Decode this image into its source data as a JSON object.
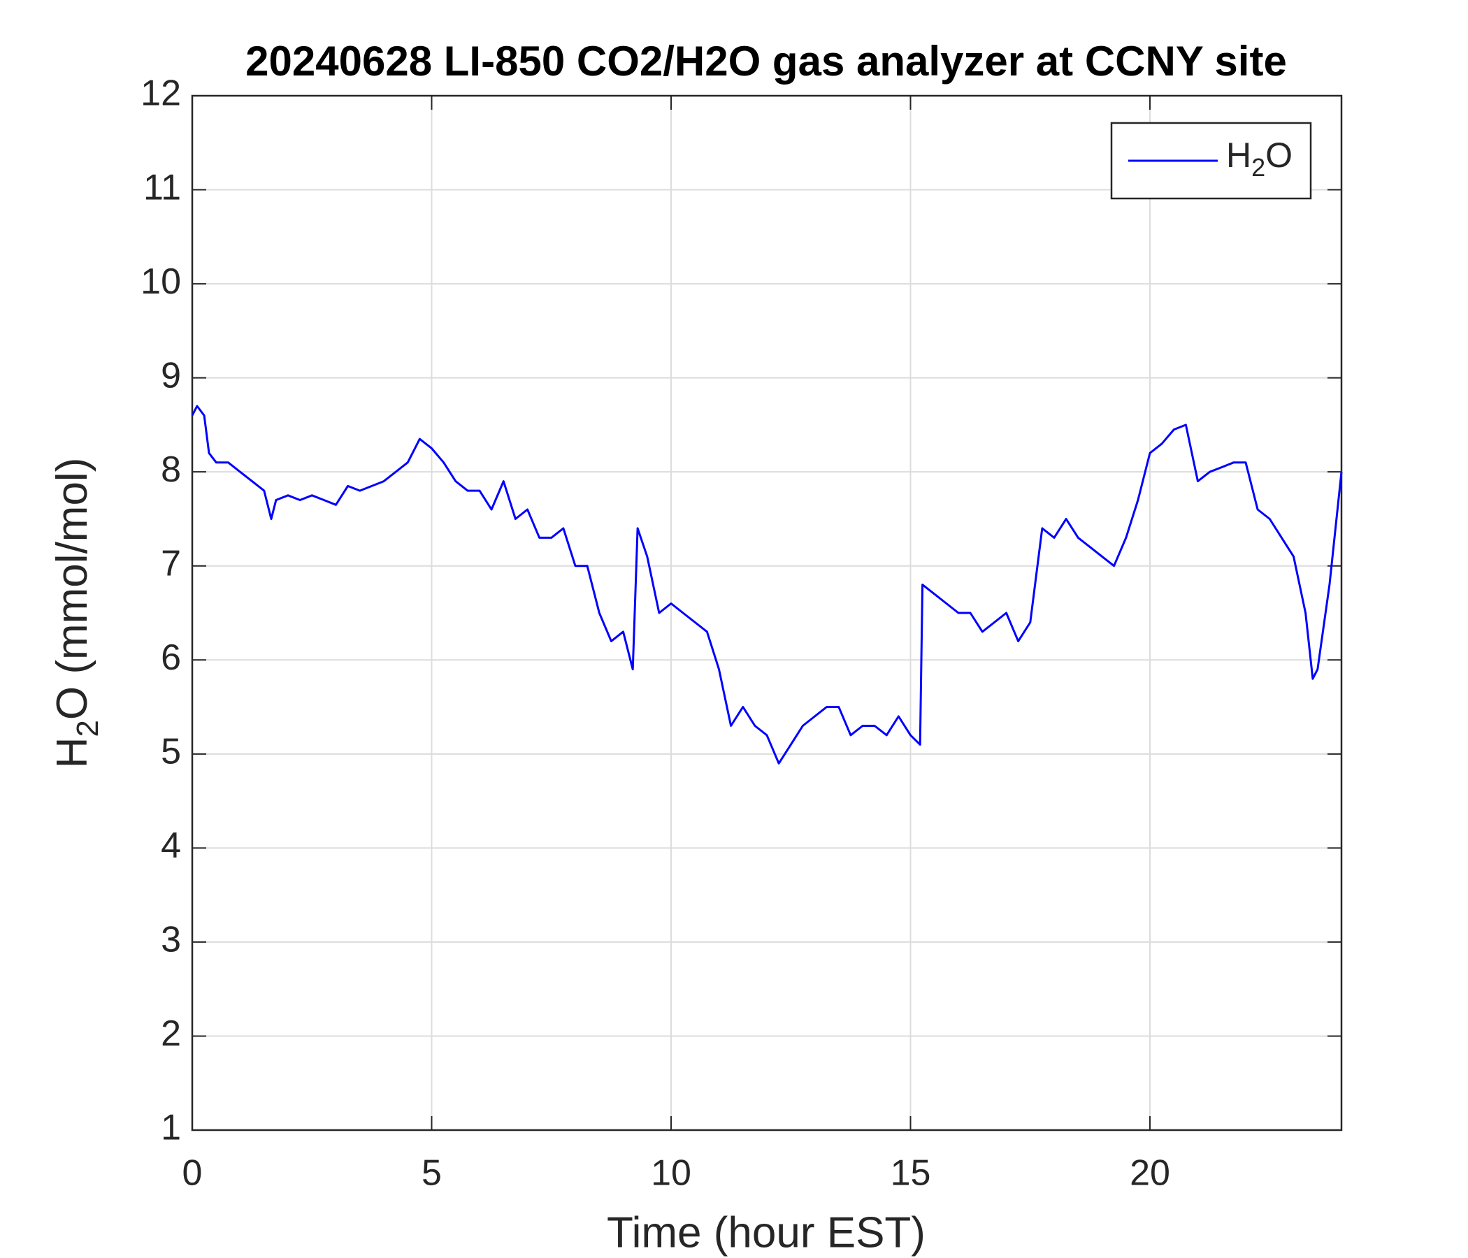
{
  "chart_data": {
    "type": "line",
    "title": "20240628 LI-850 CO2/H2O gas analyzer at CCNY site",
    "x_label": "Time (hour EST)",
    "y_label": "H2O (mmol/mol)",
    "x": [
      0,
      0.1,
      0.25,
      0.35,
      0.5,
      0.75,
      1.0,
      1.25,
      1.5,
      1.65,
      1.75,
      2.0,
      2.25,
      2.5,
      2.75,
      3.0,
      3.25,
      3.5,
      3.75,
      4.0,
      4.25,
      4.5,
      4.75,
      5.0,
      5.25,
      5.5,
      5.75,
      6.0,
      6.25,
      6.5,
      6.75,
      7.0,
      7.25,
      7.5,
      7.75,
      8.0,
      8.25,
      8.5,
      8.75,
      9.0,
      9.2,
      9.3,
      9.5,
      9.75,
      10.0,
      10.25,
      10.5,
      10.75,
      11.0,
      11.25,
      11.5,
      11.75,
      12.0,
      12.25,
      12.5,
      12.75,
      13.0,
      13.25,
      13.5,
      13.75,
      14.0,
      14.25,
      14.5,
      14.75,
      15.0,
      15.2,
      15.25,
      15.5,
      15.75,
      16.0,
      16.25,
      16.5,
      16.75,
      17.0,
      17.25,
      17.5,
      17.75,
      18.0,
      18.25,
      18.5,
      18.75,
      19.0,
      19.25,
      19.5,
      19.75,
      20.0,
      20.25,
      20.5,
      20.75,
      21.0,
      21.25,
      21.5,
      21.75,
      22.0,
      22.25,
      22.5,
      22.75,
      23.0,
      23.25,
      23.4,
      23.5,
      23.75,
      24.0
    ],
    "series": [
      {
        "name": "H2O",
        "color": "#0000ff",
        "values": [
          8.6,
          8.7,
          8.6,
          8.2,
          8.1,
          8.1,
          8.0,
          7.9,
          7.8,
          7.5,
          7.7,
          7.75,
          7.7,
          7.75,
          7.7,
          7.65,
          7.85,
          7.8,
          7.85,
          7.9,
          8.0,
          8.1,
          8.35,
          8.25,
          8.1,
          7.9,
          7.8,
          7.8,
          7.6,
          7.9,
          7.5,
          7.6,
          7.3,
          7.3,
          7.4,
          7.0,
          7.0,
          6.5,
          6.2,
          6.3,
          5.9,
          7.4,
          7.1,
          6.5,
          6.6,
          6.5,
          6.4,
          6.3,
          5.9,
          5.3,
          5.5,
          5.3,
          5.2,
          4.9,
          5.1,
          5.3,
          5.4,
          5.5,
          5.5,
          5.2,
          5.3,
          5.3,
          5.2,
          5.4,
          5.2,
          5.1,
          6.8,
          6.7,
          6.6,
          6.5,
          6.5,
          6.3,
          6.4,
          6.5,
          6.2,
          6.4,
          7.4,
          7.3,
          7.5,
          7.3,
          7.2,
          7.1,
          7.0,
          7.3,
          7.7,
          8.2,
          8.3,
          8.45,
          8.5,
          7.9,
          8.0,
          8.05,
          8.1,
          8.1,
          7.6,
          7.5,
          7.3,
          7.1,
          6.5,
          5.8,
          5.9,
          6.8,
          8.0
        ]
      }
    ],
    "xlim": [
      0,
      24
    ],
    "xticks": [
      0,
      5,
      10,
      15,
      20
    ],
    "ylim": [
      1,
      12
    ],
    "yticks": [
      1,
      2,
      3,
      4,
      5,
      6,
      7,
      8,
      9,
      10,
      11,
      12
    ],
    "grid": true,
    "legend": "upper right"
  }
}
